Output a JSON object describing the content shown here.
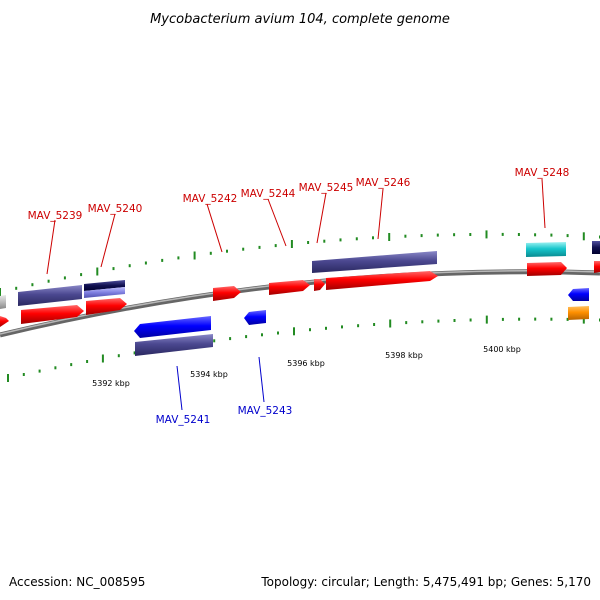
{
  "title": "Mycobacterium avium 104, complete genome",
  "footer": {
    "accession": "Accession: NC_008595",
    "summary": "Topology: circular; Length: 5,475,491 bp; Genes: 5,170"
  },
  "colors": {
    "forward_label": "#cc0000",
    "reverse_label": "#0000cc",
    "tick": "#228b22",
    "backbone": "#777777"
  },
  "axis": {
    "tick_labels": [
      "5392 kbp",
      "5394 kbp",
      "5396 kbp",
      "5398 kbp",
      "5400 kbp"
    ]
  },
  "genes": {
    "forward": [
      "MAV_5239",
      "MAV_5240",
      "MAV_5242",
      "MAV_5244",
      "MAV_5245",
      "MAV_5246",
      "MAV_5248"
    ],
    "reverse": [
      "MAV_5241",
      "MAV_5243"
    ]
  }
}
